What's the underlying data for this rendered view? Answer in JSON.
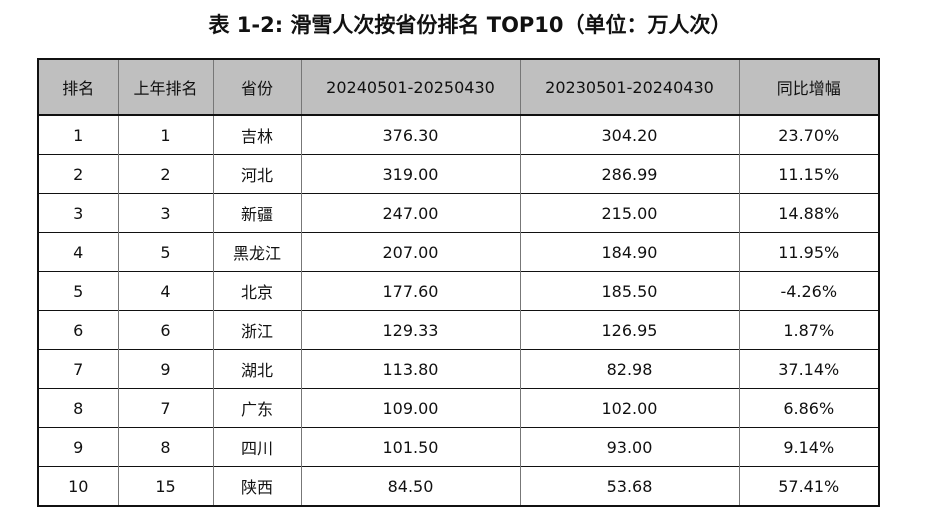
{
  "title": "表 1-2: 滑雪人次按省份排名 TOP10（单位：万人次）",
  "headers": [
    "排名",
    "上年排名",
    "省份",
    "20240501-20250430",
    "20230501-20240430",
    "同比增幅"
  ],
  "rows": [
    [
      "1",
      "1",
      "吉林",
      "376.30",
      "304.20",
      "23.70%"
    ],
    [
      "2",
      "2",
      "河北",
      "319.00",
      "286.99",
      "11.15%"
    ],
    [
      "3",
      "3",
      "新疆",
      "247.00",
      "215.00",
      "14.88%"
    ],
    [
      "4",
      "5",
      "黑龙江",
      "207.00",
      "184.90",
      "11.95%"
    ],
    [
      "5",
      "4",
      "北京",
      "177.60",
      "185.50",
      "-4.26%"
    ],
    [
      "6",
      "6",
      "浙江",
      "129.33",
      "126.95",
      "1.87%"
    ],
    [
      "7",
      "9",
      "湖北",
      "113.80",
      "82.98",
      "37.14%"
    ],
    [
      "8",
      "7",
      "广东",
      "109.00",
      "102.00",
      "6.86%"
    ],
    [
      "9",
      "8",
      "四川",
      "101.50",
      "93.00",
      "9.14%"
    ],
    [
      "10",
      "15",
      "陕西",
      "84.50",
      "53.68",
      "57.41%"
    ]
  ]
}
